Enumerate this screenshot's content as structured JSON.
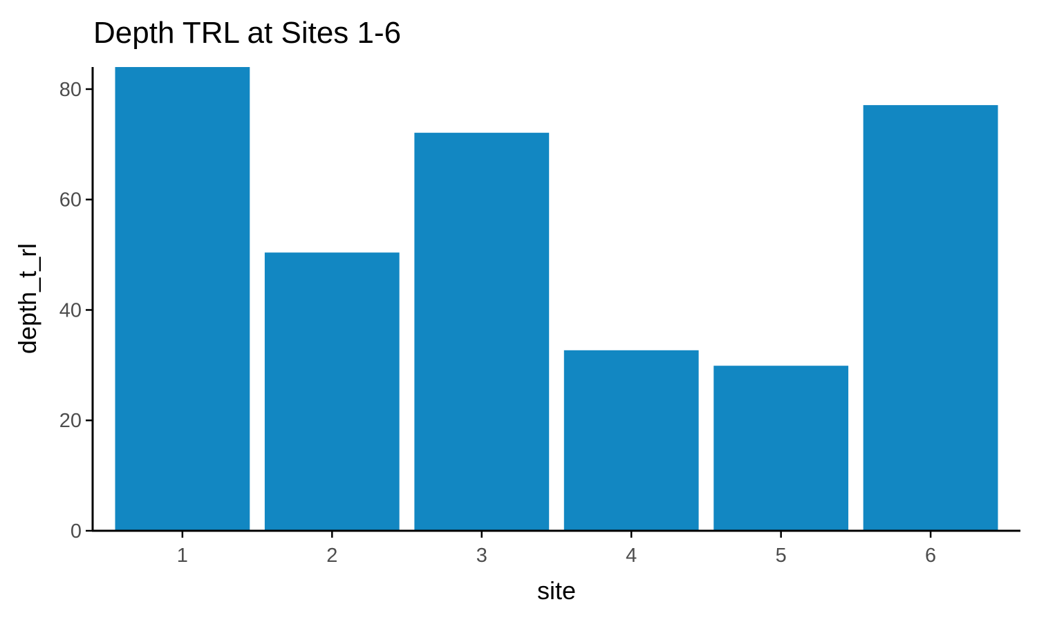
{
  "chart_data": {
    "type": "bar",
    "title": "Depth TRL at Sites 1-6",
    "xlabel": "site",
    "ylabel": "depth_t_rl",
    "categories": [
      "1",
      "2",
      "3",
      "4",
      "5",
      "6"
    ],
    "values": [
      84,
      50.4,
      72.1,
      32.7,
      29.9,
      77.1
    ],
    "ylim": [
      0,
      84
    ],
    "yticks": [
      0,
      20,
      40,
      60,
      80
    ],
    "ytick_labels": [
      "0",
      "20",
      "40",
      "60",
      "80"
    ],
    "bar_color": "#1287c2",
    "grid": false,
    "legend": "none"
  }
}
